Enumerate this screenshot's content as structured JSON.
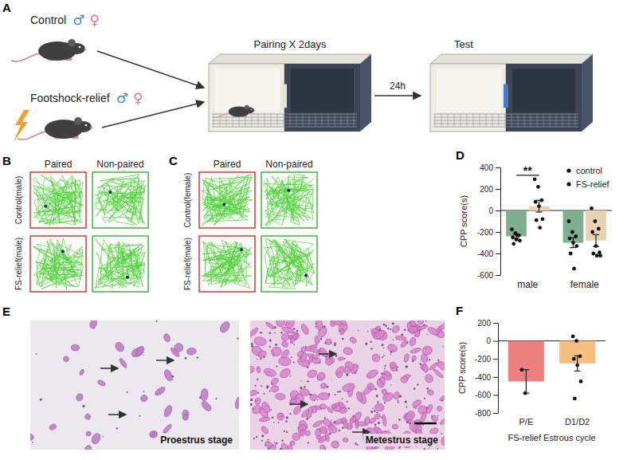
{
  "panel_labels": [
    "A",
    "B",
    "C",
    "D",
    "E",
    "F"
  ],
  "diagram": {
    "groups": [
      {
        "label": "Control",
        "sexes": [
          "♂",
          "♀"
        ]
      },
      {
        "label": "Footshock-relief",
        "sexes": [
          "♂",
          "♀"
        ]
      }
    ],
    "pairing": "Pairing X 2days",
    "interval": "24h",
    "test": "Test"
  },
  "tracks": [
    {
      "columns": [
        "Paired",
        "Non-paired"
      ],
      "rows": [
        "Control(male)",
        "FS-relief(male)"
      ]
    },
    {
      "columns": [
        "Paired",
        "Non-paired"
      ],
      "rows": [
        "Control(female)",
        "FS-relief(male)"
      ]
    }
  ],
  "micrographs": {
    "stages": [
      "Proestrus stage",
      "Metestrus stage"
    ]
  },
  "chart_data": [
    {
      "type": "bar",
      "categories": [
        "male",
        "female"
      ],
      "y_label": "CPP score(s)",
      "ylim": [
        -600,
        400
      ],
      "yticks": [
        -600,
        -400,
        -200,
        0,
        200,
        400
      ],
      "grid": false,
      "legend": "upper right",
      "series": [
        {
          "name": "control",
          "color": "#7fae91",
          "values": [
            -240,
            -300
          ],
          "errors": [
            17,
            45
          ],
          "points": [
            [
              -175,
              -210,
              -230,
              -250,
              -270,
              -280,
              -310,
              -230
            ],
            [
              -100,
              -200,
              -240,
              -260,
              -300,
              -330,
              -400,
              -540
            ]
          ]
        },
        {
          "name": "FS-relief",
          "color": "#e8d3b3",
          "values": [
            40,
            -280
          ],
          "errors": [
            55,
            55
          ],
          "points": [
            [
              290,
              220,
              95,
              80,
              40,
              -80,
              -90,
              -160
            ],
            [
              20,
              -100,
              -170,
              -200,
              -330,
              -390,
              -400,
              -420,
              -420
            ]
          ]
        }
      ],
      "annotations": [
        {
          "text": "**",
          "category": "male"
        }
      ]
    },
    {
      "type": "bar",
      "categories": [
        "P/E",
        "D1/D2"
      ],
      "values": [
        -450,
        -250
      ],
      "errors": [
        130,
        85
      ],
      "points": [
        [
          -320,
          -580
        ],
        [
          50,
          0,
          -170,
          -200,
          -270,
          -450,
          -640
        ]
      ],
      "colors": [
        "#ee7f7f",
        "#f6bf80"
      ],
      "x_label": "FS-relief Estrous cycle",
      "y_label": "CPP score(s)",
      "ylim": [
        -800,
        200
      ],
      "yticks": [
        -800,
        -600,
        -400,
        -200,
        0,
        200
      ],
      "grid": false
    }
  ]
}
